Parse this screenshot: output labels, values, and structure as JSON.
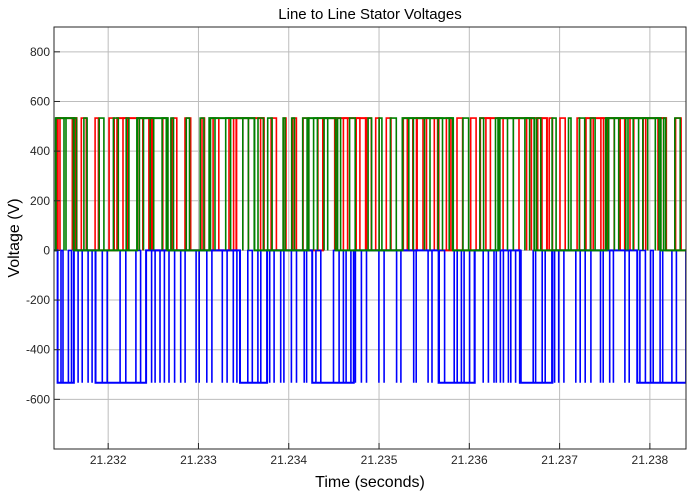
{
  "chart_data": {
    "type": "line",
    "title": "Line to Line Stator Voltages",
    "xlabel": "Time (seconds)",
    "ylabel": "Voltage (V)",
    "xlim": [
      21.2314,
      21.2384
    ],
    "ylim": [
      -800,
      900
    ],
    "xticks": [
      21.232,
      21.233,
      21.234,
      21.235,
      21.236,
      21.237,
      21.238
    ],
    "yticks": [
      -600,
      -400,
      -200,
      0,
      200,
      400,
      600,
      800
    ],
    "xtick_labels": [
      "21.232",
      "21.233",
      "21.234",
      "21.235",
      "21.236",
      "21.237",
      "21.238"
    ],
    "ytick_labels": [
      "-600",
      "-400",
      "-200",
      "0",
      "200",
      "400",
      "600",
      "800"
    ],
    "grid": true,
    "legend": "none",
    "series": [
      {
        "color": "#ff0000",
        "levels": [
          0,
          533
        ],
        "x": [
          21.2314,
          21.23143,
          21.23163,
          21.23165,
          21.23206,
          21.2321,
          21.23242,
          21.23248,
          21.23338,
          21.23342,
          21.23368,
          21.23372,
          21.23434,
          21.23438,
          21.23482,
          21.23486,
          21.23538,
          21.23542,
          21.23562,
          21.23566,
          21.23608,
          21.23612,
          21.23682,
          21.23686,
          21.23725,
          21.23729,
          21.23814,
          21.23818,
          21.2384
        ],
        "values": [
          0,
          533,
          533,
          0,
          0,
          533,
          533,
          0,
          0,
          533,
          533,
          0,
          0,
          533,
          533,
          0,
          0,
          533,
          533,
          0,
          0,
          533,
          533,
          0,
          0,
          533,
          533,
          0,
          0
        ]
      },
      {
        "color": "#0000ff",
        "levels": [
          -533,
          0
        ],
        "x": [
          21.2314,
          21.23144,
          21.23158,
          21.23162,
          21.23182,
          21.23186,
          21.23238,
          21.23242,
          21.23342,
          21.23346,
          21.23372,
          21.23376,
          21.23422,
          21.23426,
          21.23468,
          21.23472,
          21.23562,
          21.23566,
          21.23602,
          21.23606,
          21.23652,
          21.23656,
          21.23688,
          21.23692,
          21.23782,
          21.23786,
          21.2384
        ],
        "values": [
          0,
          -533,
          -533,
          0,
          0,
          -533,
          -533,
          0,
          0,
          -533,
          -533,
          0,
          0,
          -533,
          -533,
          0,
          0,
          -533,
          -533,
          0,
          0,
          -533,
          -533,
          0,
          0,
          -533,
          -533
        ]
      },
      {
        "color": "#008000",
        "levels": [
          0,
          533
        ],
        "x": [
          21.2314,
          21.23142,
          21.23158,
          21.23162,
          21.23228,
          21.23232,
          21.23262,
          21.23266,
          21.23308,
          21.23312,
          21.23358,
          21.23362,
          21.23418,
          21.23422,
          21.23448,
          21.23452,
          21.23522,
          21.23526,
          21.23578,
          21.23582,
          21.23628,
          21.23632,
          21.23668,
          21.23672,
          21.23748,
          21.23752,
          21.23808,
          21.23812,
          21.2384
        ],
        "values": [
          0,
          533,
          533,
          0,
          0,
          533,
          533,
          0,
          0,
          533,
          533,
          0,
          0,
          533,
          533,
          0,
          0,
          533,
          533,
          0,
          0,
          533,
          533,
          0,
          0,
          533,
          533,
          0,
          0
        ]
      }
    ]
  }
}
